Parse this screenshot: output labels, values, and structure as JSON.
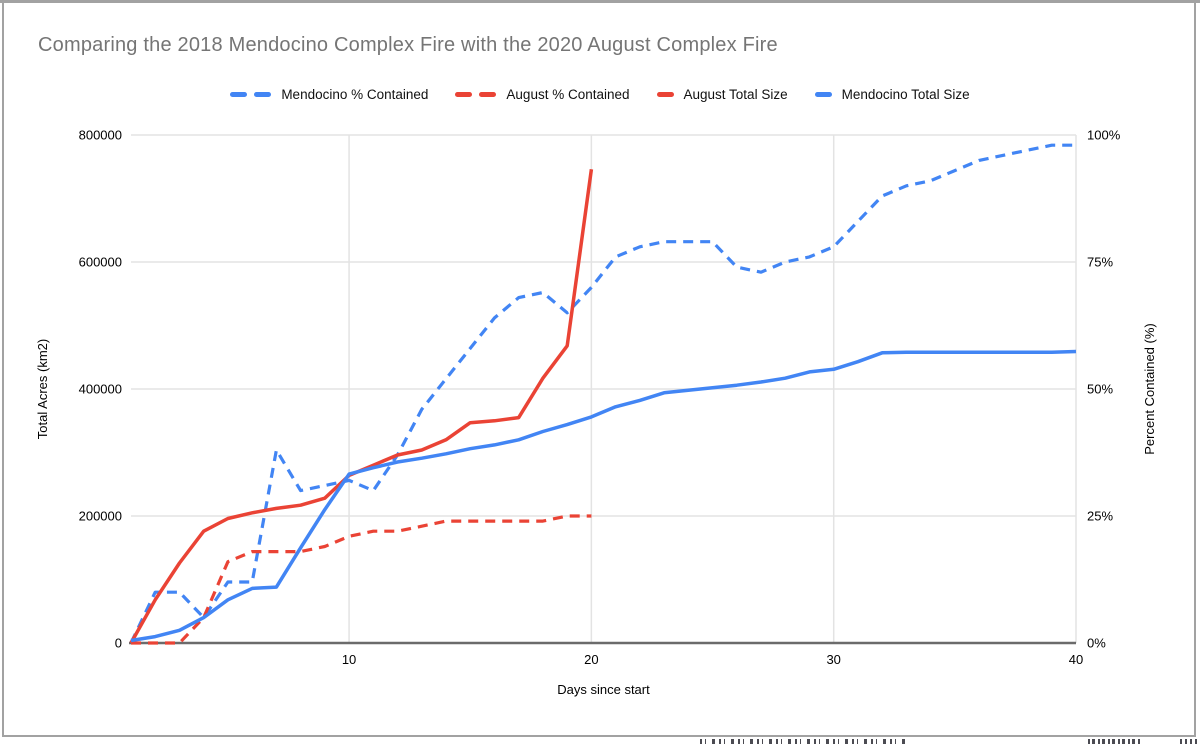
{
  "title": "Comparing the 2018 Mendocino Complex Fire with the 2020 August Complex Fire",
  "colors": {
    "blue": "#4285F4",
    "red": "#EA4335",
    "title_text": "#757575",
    "axis_text": "#000000",
    "gridline": "#e3e3e3",
    "axis_line": "#6b6b6b",
    "frame_border": "#a2a2a2"
  },
  "legend": [
    {
      "label": "Mendocino % Contained",
      "color": "#4285F4",
      "style": "dashed"
    },
    {
      "label": "August % Contained",
      "color": "#EA4335",
      "style": "dashed"
    },
    {
      "label": "August Total Size",
      "color": "#EA4335",
      "style": "solid"
    },
    {
      "label": "Mendocino Total Size",
      "color": "#4285F4",
      "style": "solid"
    }
  ],
  "chart_data": {
    "type": "line",
    "title": "Comparing the 2018 Mendocino Complex Fire with the 2020 August Complex Fire",
    "xlabel": "Days since start",
    "grid": true,
    "legend_position": "top",
    "x_axis": {
      "range": [
        1,
        40
      ],
      "ticks": [
        {
          "label": "10",
          "value": 10
        },
        {
          "label": "20",
          "value": 20
        },
        {
          "label": "30",
          "value": 30
        },
        {
          "label": "40",
          "value": 40
        }
      ]
    },
    "y_left": {
      "title": "Total Acres (km2)",
      "range": [
        0,
        800000
      ],
      "ticks": [
        {
          "label": "0",
          "value": 0
        },
        {
          "label": "200000",
          "value": 200000
        },
        {
          "label": "400000",
          "value": 400000
        },
        {
          "label": "600000",
          "value": 600000
        },
        {
          "label": "800000",
          "value": 800000
        }
      ]
    },
    "y_right": {
      "title": "Percent Contained (%)",
      "range": [
        0,
        100
      ],
      "ticks": [
        {
          "label": "0%",
          "value": 0
        },
        {
          "label": "25%",
          "value": 25
        },
        {
          "label": "50%",
          "value": 50
        },
        {
          "label": "75%",
          "value": 75
        },
        {
          "label": "100%",
          "value": 100
        }
      ]
    },
    "series": [
      {
        "name": "Mendocino % Contained",
        "axis": "right",
        "style": "dashed",
        "color": "#4285F4",
        "start_day": 1,
        "values": [
          0,
          10,
          10,
          5,
          12,
          12,
          38,
          30,
          31,
          32,
          30,
          37,
          46,
          52,
          58,
          64,
          68,
          69,
          65,
          70,
          76,
          78,
          79,
          79,
          79,
          74,
          73,
          75,
          76,
          78,
          83,
          88,
          90,
          91,
          93,
          95,
          96,
          97,
          98,
          98
        ]
      },
      {
        "name": "August % Contained",
        "axis": "right",
        "style": "dashed",
        "color": "#EA4335",
        "start_day": 1,
        "values": [
          0,
          0,
          0,
          5,
          16,
          18,
          18,
          18,
          19,
          21,
          22,
          22,
          23,
          24,
          24,
          24,
          24,
          24,
          25,
          25
        ]
      },
      {
        "name": "August Total Size",
        "axis": "left",
        "style": "solid",
        "color": "#EA4335",
        "start_day": 1,
        "values": [
          0,
          68000,
          126000,
          176000,
          196000,
          205000,
          212000,
          217000,
          228000,
          264000,
          280000,
          296000,
          304000,
          320000,
          347000,
          350000,
          355000,
          417000,
          468000,
          746000
        ]
      },
      {
        "name": "Mendocino Total Size",
        "axis": "left",
        "style": "solid",
        "color": "#4285F4",
        "start_day": 1,
        "values": [
          4000,
          10000,
          20000,
          40000,
          68000,
          86000,
          88000,
          150000,
          210000,
          266000,
          276000,
          285000,
          291000,
          298000,
          306000,
          312000,
          320000,
          333000,
          344000,
          356000,
          372000,
          382000,
          394000,
          398000,
          402000,
          406000,
          411000,
          417000,
          427000,
          431000,
          443000,
          457000,
          458000,
          458000,
          458000,
          458000,
          458000,
          458000,
          458000,
          459000
        ]
      }
    ]
  }
}
